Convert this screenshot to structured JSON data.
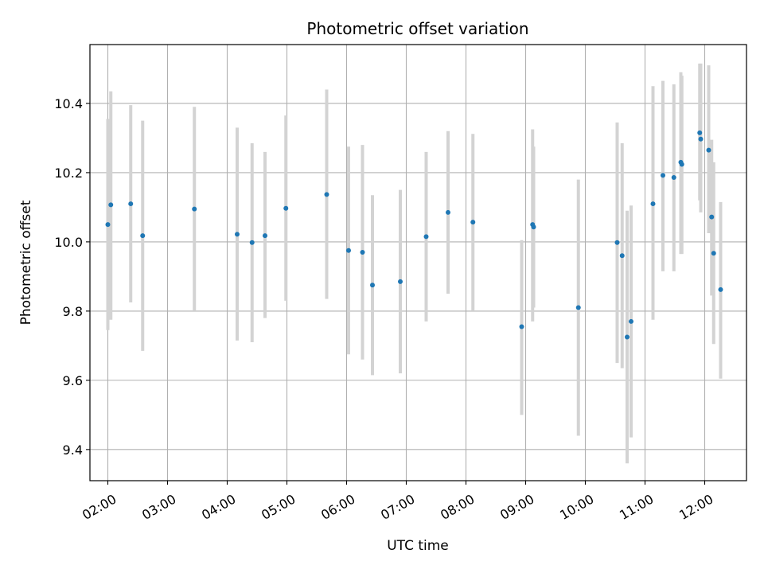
{
  "chart_data": {
    "type": "scatter",
    "title": "Photometric offset variation",
    "xlabel": "UTC time",
    "ylabel": "Photometric offset",
    "x_unit": "hours UTC",
    "xlim": [
      "01:42",
      "12:42"
    ],
    "ylim": [
      9.31,
      10.57
    ],
    "x_ticks": [
      "02:00",
      "03:00",
      "04:00",
      "05:00",
      "06:00",
      "07:00",
      "08:00",
      "09:00",
      "10:00",
      "11:00",
      "12:00"
    ],
    "y_ticks": [
      "9.4",
      "9.6",
      "9.8",
      "10.0",
      "10.2",
      "10.4"
    ],
    "grid": true,
    "colors": {
      "point": "#1f77b4",
      "errorbar": "#d3d3d3",
      "grid": "#b0b0b0"
    },
    "series": [
      {
        "points": [
          {
            "x": "02:00",
            "y": 10.05,
            "ylo": 9.745,
            "yhi": 10.355
          },
          {
            "x": "02:03",
            "y": 10.107,
            "ylo": 9.775,
            "yhi": 10.435
          },
          {
            "x": "02:23",
            "y": 10.11,
            "ylo": 9.825,
            "yhi": 10.395
          },
          {
            "x": "02:35",
            "y": 10.018,
            "ylo": 9.685,
            "yhi": 10.35
          },
          {
            "x": "03:27",
            "y": 10.095,
            "ylo": 9.8,
            "yhi": 10.39
          },
          {
            "x": "04:10",
            "y": 10.022,
            "ylo": 9.715,
            "yhi": 10.33
          },
          {
            "x": "04:25",
            "y": 9.998,
            "ylo": 9.71,
            "yhi": 10.285
          },
          {
            "x": "04:38",
            "y": 10.018,
            "ylo": 9.78,
            "yhi": 10.26
          },
          {
            "x": "04:59",
            "y": 10.097,
            "ylo": 9.83,
            "yhi": 10.365
          },
          {
            "x": "05:40",
            "y": 10.137,
            "ylo": 9.835,
            "yhi": 10.44
          },
          {
            "x": "06:02",
            "y": 9.975,
            "ylo": 9.675,
            "yhi": 10.275
          },
          {
            "x": "06:16",
            "y": 9.97,
            "ylo": 9.66,
            "yhi": 10.28
          },
          {
            "x": "06:26",
            "y": 9.875,
            "ylo": 9.615,
            "yhi": 10.135
          },
          {
            "x": "06:54",
            "y": 9.885,
            "ylo": 9.62,
            "yhi": 10.15
          },
          {
            "x": "07:20",
            "y": 10.015,
            "ylo": 9.77,
            "yhi": 10.26
          },
          {
            "x": "07:42",
            "y": 10.085,
            "ylo": 9.85,
            "yhi": 10.32
          },
          {
            "x": "08:07",
            "y": 10.057,
            "ylo": 9.8,
            "yhi": 10.312
          },
          {
            "x": "08:56",
            "y": 9.755,
            "ylo": 9.5,
            "yhi": 10.005
          },
          {
            "x": "09:07",
            "y": 10.05,
            "ylo": 9.77,
            "yhi": 10.325
          },
          {
            "x": "09:08",
            "y": 10.043,
            "ylo": 9.81,
            "yhi": 10.275
          },
          {
            "x": "09:53",
            "y": 9.81,
            "ylo": 9.44,
            "yhi": 10.18
          },
          {
            "x": "10:32",
            "y": 9.998,
            "ylo": 9.65,
            "yhi": 10.345
          },
          {
            "x": "10:37",
            "y": 9.96,
            "ylo": 9.635,
            "yhi": 10.285
          },
          {
            "x": "10:42",
            "y": 9.725,
            "ylo": 9.36,
            "yhi": 10.09
          },
          {
            "x": "10:46",
            "y": 9.77,
            "ylo": 9.435,
            "yhi": 10.105
          },
          {
            "x": "11:08",
            "y": 10.11,
            "ylo": 9.775,
            "yhi": 10.45
          },
          {
            "x": "11:18",
            "y": 10.192,
            "ylo": 9.915,
            "yhi": 10.465
          },
          {
            "x": "11:29",
            "y": 10.186,
            "ylo": 9.915,
            "yhi": 10.455
          },
          {
            "x": "11:36",
            "y": 10.23,
            "ylo": 9.965,
            "yhi": 10.49
          },
          {
            "x": "11:37",
            "y": 10.224,
            "ylo": 9.965,
            "yhi": 10.48
          },
          {
            "x": "11:55",
            "y": 10.315,
            "ylo": 10.12,
            "yhi": 10.515
          },
          {
            "x": "11:56",
            "y": 10.297,
            "ylo": 10.085,
            "yhi": 10.515
          },
          {
            "x": "12:04",
            "y": 10.265,
            "ylo": 10.025,
            "yhi": 10.51
          },
          {
            "x": "12:07",
            "y": 10.072,
            "ylo": 9.845,
            "yhi": 10.295
          },
          {
            "x": "12:09",
            "y": 9.967,
            "ylo": 9.705,
            "yhi": 10.23
          },
          {
            "x": "12:16",
            "y": 9.862,
            "ylo": 9.605,
            "yhi": 10.115
          }
        ]
      }
    ]
  }
}
